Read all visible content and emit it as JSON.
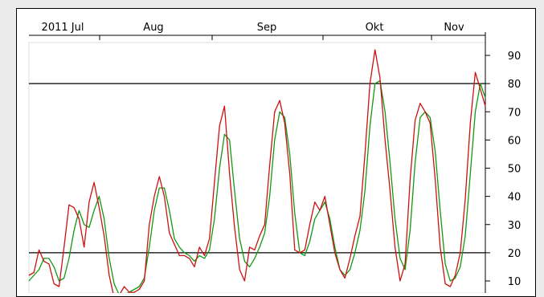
{
  "chart_data": {
    "type": "line",
    "title": "",
    "xlabel": "",
    "ylabel": "",
    "x_tick_labels": [
      "2011 Jul",
      "Aug",
      "Sep",
      "Okt",
      "Nov"
    ],
    "y_ticks": [
      10,
      20,
      30,
      40,
      50,
      60,
      70,
      80,
      90
    ],
    "ylim": [
      2,
      97
    ],
    "reference_lines": [
      80,
      20
    ],
    "grid": false,
    "legend": "none",
    "series": [
      {
        "color": "#cc1111",
        "values": [
          12,
          13,
          21,
          17,
          16,
          9,
          8,
          22,
          37,
          36,
          32,
          22,
          38,
          45,
          36,
          26,
          12,
          4,
          5,
          8,
          6,
          6,
          7,
          10,
          30,
          40,
          47,
          40,
          27,
          23,
          19,
          19,
          18,
          15,
          22,
          19,
          25,
          45,
          65,
          72,
          48,
          29,
          14,
          10,
          22,
          21,
          26,
          30,
          51,
          70,
          74,
          66,
          48,
          21,
          20,
          21,
          30,
          38,
          35,
          40,
          30,
          20,
          14,
          11,
          18,
          26,
          33,
          55,
          80,
          92,
          82,
          60,
          42,
          22,
          10,
          16,
          46,
          67,
          73,
          70,
          66,
          46,
          22,
          9,
          8,
          12,
          20,
          39,
          66,
          84,
          78,
          72
        ]
      },
      {
        "color": "#119911",
        "values": [
          10,
          12,
          14,
          18,
          18,
          15,
          10,
          11,
          18,
          28,
          35,
          30,
          29,
          35,
          40,
          32,
          18,
          9,
          5,
          5,
          6,
          7,
          8,
          11,
          22,
          35,
          43,
          43,
          35,
          25,
          22,
          20,
          19,
          17,
          19,
          18,
          21,
          32,
          50,
          62,
          60,
          42,
          25,
          17,
          15,
          18,
          22,
          27,
          40,
          60,
          70,
          68,
          55,
          34,
          20,
          19,
          24,
          32,
          35,
          38,
          32,
          22,
          14,
          12,
          14,
          20,
          28,
          42,
          65,
          80,
          81,
          70,
          52,
          32,
          18,
          14,
          28,
          52,
          68,
          70,
          68,
          56,
          35,
          16,
          10,
          11,
          15,
          26,
          48,
          70,
          80,
          75
        ]
      }
    ]
  }
}
